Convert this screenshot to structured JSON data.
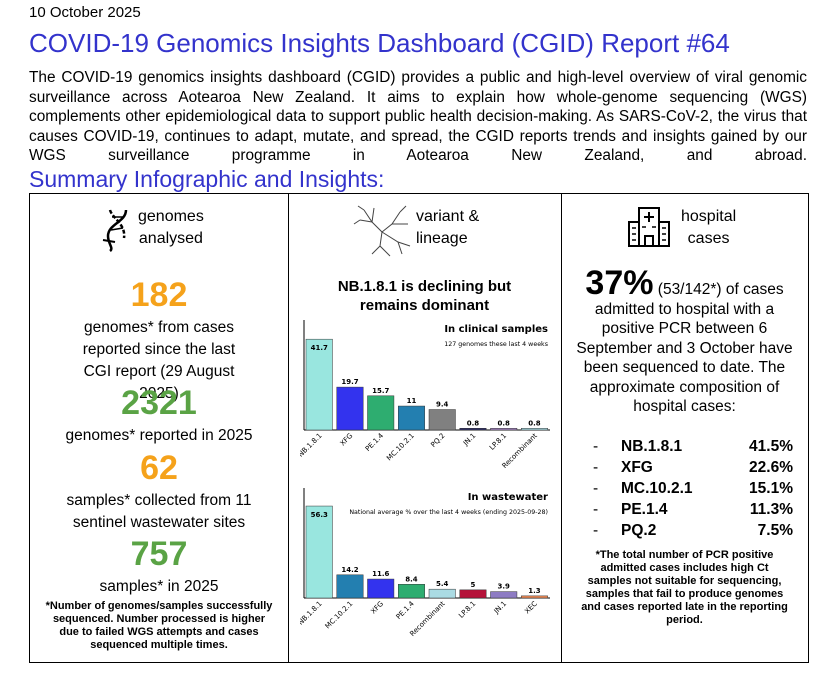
{
  "date": "10 October 2025",
  "title": "COVID-19 Genomics Insights Dashboard (CGID) Report #64",
  "intro": "The COVID-19 genomics insights dashboard (CGID) provides a public and high-level overview of viral genomic surveillance across Aotearoa New Zealand. It aims to explain how whole-genome sequencing (WGS) complements other epidemiological data to support public health decision-making. As SARS-CoV-2, the virus that causes COVID-19, continues to adapt, mutate, and spread, the CGID reports trends and insights gained by our WGS surveillance programme in Aotearoa New Zealand, and abroad.",
  "subtitle": "Summary Infographic and Insights:",
  "genomes": {
    "header_line1": "genomes",
    "header_line2": "analysed",
    "stat1_value": "182",
    "stat1_text": "genomes* from cases reported since the last CGI report (29 August 2025)",
    "stat2_value": "2321",
    "stat2_text": "genomes* reported in 2025",
    "stat3_value": "62",
    "stat3_text": "samples* collected from 11 sentinel wastewater sites",
    "stat4_value": "757",
    "stat4_text": "samples* in 2025",
    "footnote": "*Number of genomes/samples successfully sequenced. Number processed is higher due to failed WGS attempts and cases sequenced multiple times."
  },
  "variant": {
    "header_line1": "variant &",
    "header_line2": "lineage",
    "chart_title": "NB.1.8.1 is declining but remains dominant"
  },
  "chart_data": [
    {
      "type": "bar",
      "title": "In clinical samples",
      "subtitle": "127  genomes these last 4 weeks",
      "categories": [
        "NB.1.8.1",
        "XFG",
        "PE.1.4",
        "MC.10.2.1",
        "PQ.2",
        "JN.1",
        "LP.8.1",
        "Recombinant"
      ],
      "values": [
        41.7,
        19.7,
        15.7,
        11,
        9.4,
        0.8,
        0.8,
        0.8
      ],
      "labels": [
        "41.7",
        "19.7",
        "15.7",
        "11",
        "9.4",
        "0.8",
        "0.8",
        "0.8"
      ],
      "colors": [
        "#99e6df",
        "#3333ee",
        "#2ead70",
        "#237fb0",
        "#808080",
        "#30306b",
        "#a788c4",
        "#aadbe3"
      ],
      "ylim": [
        0,
        45
      ]
    },
    {
      "type": "bar",
      "title": "In wastewater",
      "subtitle": "National average % over the last 4 weeks (ending 2025-09-28)",
      "categories": [
        "NB.1.8.1",
        "MC.10.2.1",
        "XFG",
        "PE.1.4",
        "Recombinant",
        "LP.8.1",
        "JN.1",
        "XEC"
      ],
      "values": [
        56.3,
        14.2,
        11.6,
        8.4,
        5.4,
        5,
        3.9,
        1.3
      ],
      "labels": [
        "56.3",
        "14.2",
        "11.6",
        "8.4",
        "5.4",
        "5",
        "3.9",
        "1.3"
      ],
      "colors": [
        "#99e6df",
        "#237fb0",
        "#3333ee",
        "#2ead70",
        "#aadbe3",
        "#b5133a",
        "#8e7cc3",
        "#ee8a55"
      ],
      "ylim": [
        0,
        60
      ]
    }
  ],
  "hospital": {
    "header_line1": "hospital",
    "header_line2": "cases",
    "big_value": "37%",
    "big_paren": "(53/142*)",
    "text_after": "of cases admitted to hospital with a positive PCR between 6 September and 3 October have been sequenced to date. The approximate composition of hospital cases:",
    "composition": [
      {
        "name": "NB.1.8.1",
        "pct": "41.5%"
      },
      {
        "name": "XFG",
        "pct": "22.6%"
      },
      {
        "name": "MC.10.2.1",
        "pct": "15.1%"
      },
      {
        "name": "PE.1.4",
        "pct": "11.3%"
      },
      {
        "name": "PQ.2",
        "pct": "7.5%"
      }
    ],
    "dash": "-",
    "footnote": "*The total number of PCR positive admitted cases includes high Ct samples not suitable for sequencing, samples that fail to produce genomes and cases reported late in the reporting period."
  }
}
